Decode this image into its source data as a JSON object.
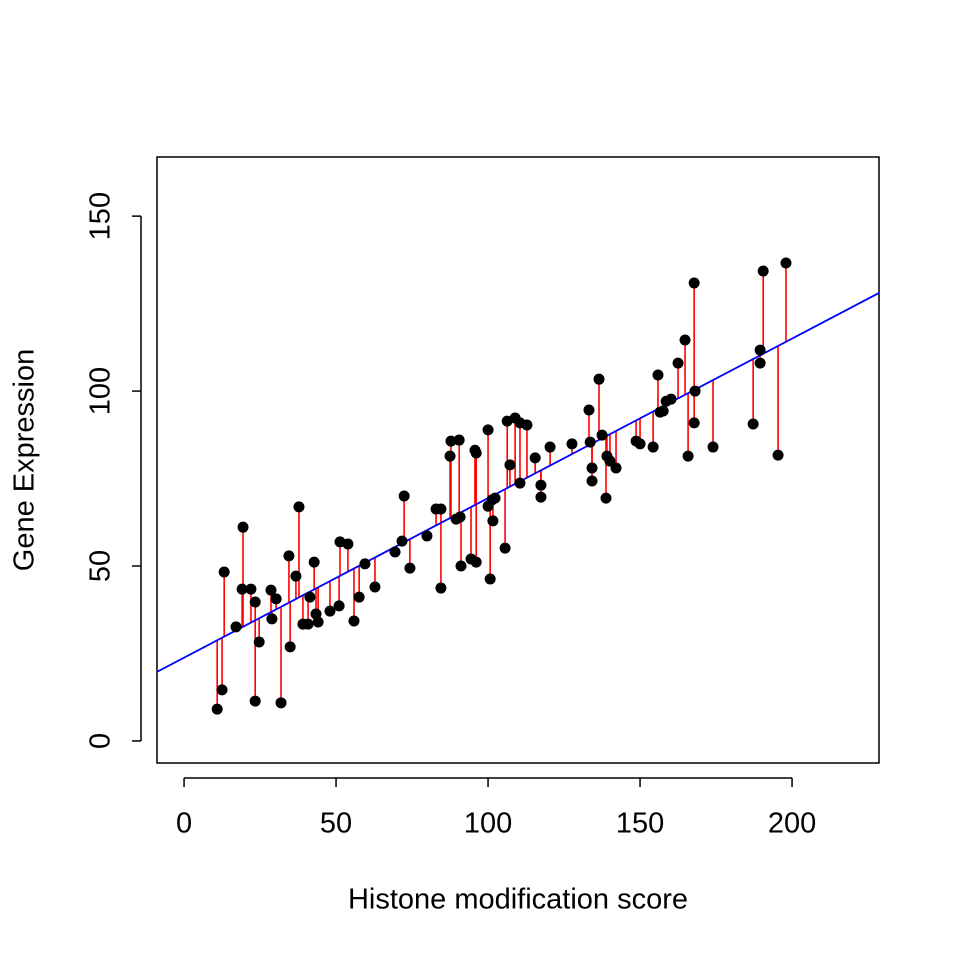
{
  "chart_data": {
    "type": "scatter",
    "x_label": "Histone modification score",
    "y_label": "Gene Expression",
    "color": "#000000",
    "residual_color": "#ff0000",
    "fit": {
      "intercept": 23.8,
      "slope": 0.456,
      "color": "#0000ff"
    },
    "xlim": [
      -8.9,
      228.6
    ],
    "ylim": [
      -6.3,
      166.9
    ],
    "xticks": [
      0,
      50,
      100,
      150,
      200
    ],
    "yticks": [
      0,
      50,
      100,
      150
    ],
    "x": [
      10.9,
      12.5,
      13.2,
      17.1,
      19.4,
      19.1,
      22.0,
      23.4,
      23.4,
      24.7,
      28.6,
      28.9,
      30.3,
      31.9,
      34.5,
      34.9,
      36.8,
      37.8,
      39.1,
      40.8,
      41.4,
      42.8,
      43.4,
      44.1,
      48.0,
      51.0,
      51.3,
      53.9,
      55.9,
      57.6,
      59.5,
      62.8,
      69.4,
      71.7,
      72.4,
      74.3,
      79.9,
      82.9,
      84.5,
      84.5,
      87.5,
      87.8,
      89.5,
      90.5,
      90.8,
      91.1,
      94.4,
      95.7,
      96.1,
      96.1,
      100.0,
      100.0,
      100.7,
      101.3,
      101.6,
      102.3,
      105.6,
      106.3,
      107.2,
      108.9,
      110.5,
      110.5,
      112.8,
      115.5,
      117.4,
      117.4,
      120.4,
      127.6,
      133.2,
      133.6,
      134.2,
      134.2,
      136.5,
      137.5,
      138.8,
      139.1,
      140.1,
      142.1,
      148.7,
      150.0,
      154.3,
      155.9,
      156.6,
      157.6,
      158.6,
      160.2,
      162.5,
      164.8,
      165.8,
      167.8,
      167.8,
      168.1,
      174.0,
      187.2,
      189.5,
      189.5,
      190.5,
      195.4,
      198.0
    ],
    "values": [
      9.1,
      14.6,
      48.3,
      32.6,
      61.1,
      43.4,
      43.4,
      39.7,
      11.4,
      28.3,
      43.1,
      34.9,
      40.6,
      10.9,
      52.9,
      26.9,
      47.1,
      66.9,
      33.4,
      33.4,
      41.1,
      51.1,
      36.3,
      34.0,
      37.1,
      38.6,
      56.9,
      56.3,
      34.3,
      41.1,
      50.6,
      44.0,
      54.0,
      57.1,
      70.0,
      49.4,
      58.6,
      66.3,
      66.3,
      43.7,
      81.4,
      85.7,
      63.4,
      86.0,
      64.0,
      50.0,
      52.0,
      83.1,
      51.1,
      82.3,
      88.9,
      67.1,
      46.3,
      68.9,
      62.9,
      69.4,
      55.1,
      91.4,
      78.9,
      92.3,
      73.7,
      90.9,
      90.3,
      80.9,
      73.1,
      69.7,
      84.0,
      84.9,
      94.6,
      85.4,
      78.0,
      74.3,
      103.4,
      87.4,
      69.4,
      81.4,
      80.0,
      78.0,
      85.7,
      84.9,
      84.0,
      104.6,
      94.0,
      94.3,
      97.1,
      97.7,
      108.0,
      114.6,
      81.4,
      130.9,
      90.9,
      100.0,
      84.0,
      90.6,
      108.0,
      111.7,
      134.3,
      81.7,
      136.6
    ]
  }
}
